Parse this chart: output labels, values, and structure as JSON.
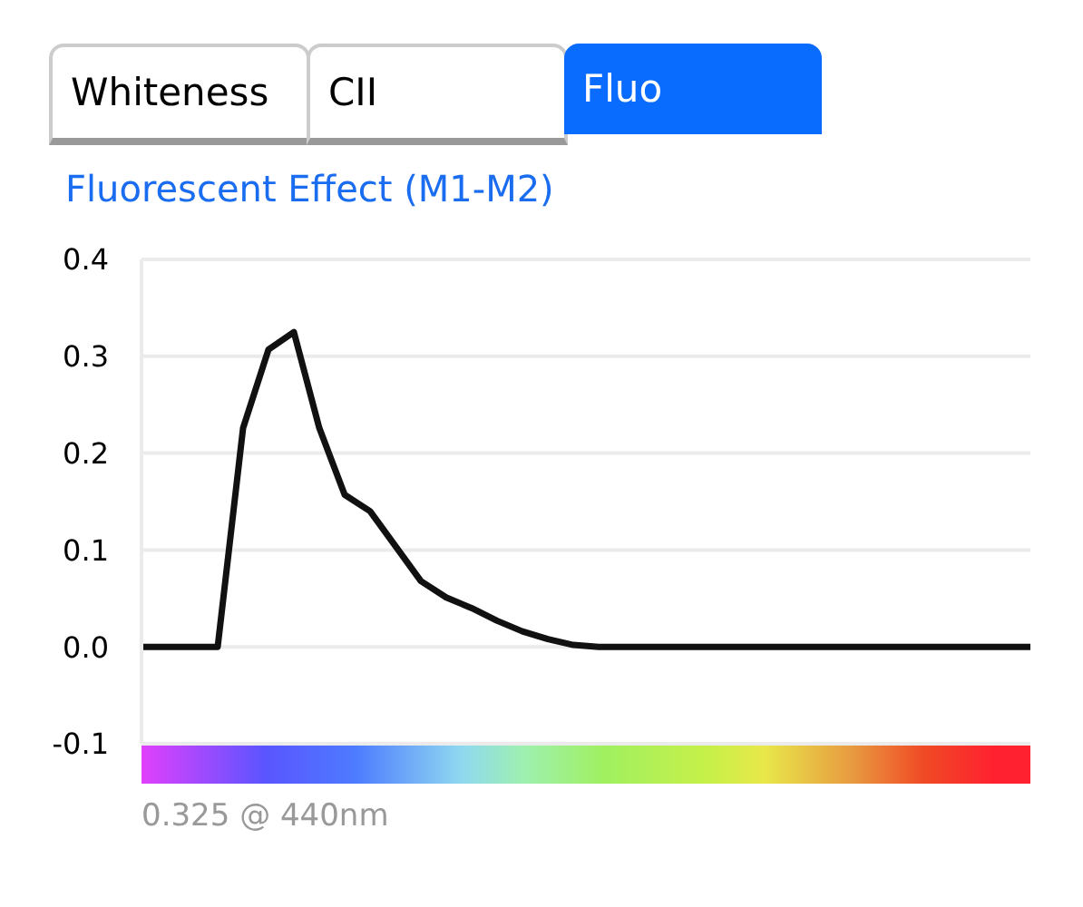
{
  "chart_data": {
    "type": "line",
    "title": "Fluorescent Effect (M1-M2)",
    "annotations": [
      "Whiteness",
      "CII",
      "Fluo",
      "0.325 @ 440nm"
    ],
    "categories": [
      null,
      null,
      null,
      null,
      null,
      null,
      null,
      null,
      null,
      null,
      null,
      null,
      null,
      null,
      null,
      null,
      null,
      null,
      null,
      null,
      null,
      null,
      null,
      null,
      null,
      null,
      null,
      null,
      null,
      null,
      null,
      null,
      null,
      null,
      null,
      null
    ],
    "series": [
      {
        "color": "#111111",
        "values": [
          0,
          0,
          0,
          0,
          0.226,
          0.307,
          0.325,
          0.226,
          0.157,
          0.14,
          0.104,
          0.068,
          0.051,
          0.04,
          0.027,
          0.016,
          0.008,
          0.002,
          0,
          0,
          0,
          0,
          0,
          0,
          0,
          0,
          0,
          0,
          0,
          0,
          0,
          0,
          0,
          0,
          0,
          0
        ]
      }
    ],
    "ylim": [
      -0.1,
      0.4
    ],
    "yticks": [
      {
        "value": -0.1,
        "label": "-0.1"
      },
      {
        "value": 0,
        "label": "0.0"
      },
      0.1,
      0.2,
      0.3,
      0.4
    ],
    "grid": "y",
    "marker": "none",
    "line_style": "solid"
  }
}
